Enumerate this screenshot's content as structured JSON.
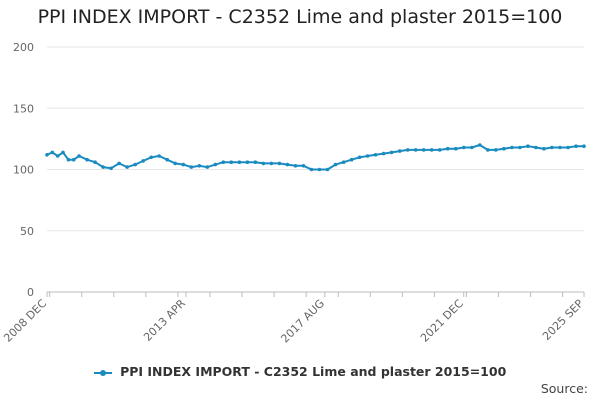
{
  "chart_data": {
    "type": "line",
    "title": "PPI INDEX IMPORT - C2352 Lime and plaster 2015=100",
    "xlabel": "",
    "ylabel": "",
    "ylim": [
      0,
      200
    ],
    "yticks": [
      0,
      50,
      100,
      150,
      200
    ],
    "xlim": [
      "2008-12",
      "2025-09"
    ],
    "x_tick_labels": [
      "2008 DEC",
      "2013 APR",
      "2017 AUG",
      "2021 DEC",
      "2025 SEP"
    ],
    "grid": true,
    "legend_position": "bottom",
    "series": [
      {
        "name": "PPI INDEX IMPORT - C2352 Lime and plaster 2015=100",
        "color": "#1a8bc0",
        "x": [
          "2008-12",
          "2009-02",
          "2009-04",
          "2009-06",
          "2009-08",
          "2009-10",
          "2009-12",
          "2010-03",
          "2010-06",
          "2010-09",
          "2010-12",
          "2011-03",
          "2011-06",
          "2011-09",
          "2011-12",
          "2012-03",
          "2012-06",
          "2012-09",
          "2012-12",
          "2013-03",
          "2013-06",
          "2013-09",
          "2013-12",
          "2014-03",
          "2014-06",
          "2014-09",
          "2014-12",
          "2015-03",
          "2015-06",
          "2015-09",
          "2015-12",
          "2016-03",
          "2016-06",
          "2016-09",
          "2016-12",
          "2017-03",
          "2017-06",
          "2017-09",
          "2017-12",
          "2018-03",
          "2018-06",
          "2018-09",
          "2018-12",
          "2019-03",
          "2019-06",
          "2019-09",
          "2019-12",
          "2020-03",
          "2020-06",
          "2020-09",
          "2020-12",
          "2021-03",
          "2021-06",
          "2021-09",
          "2021-12",
          "2022-03",
          "2022-06",
          "2022-09",
          "2022-12",
          "2023-03",
          "2023-06",
          "2023-09",
          "2023-12",
          "2024-03",
          "2024-06",
          "2024-09",
          "2024-12",
          "2025-03",
          "2025-06",
          "2025-09"
        ],
        "values": [
          112,
          114,
          111,
          114,
          108,
          108,
          111,
          108,
          106,
          102,
          101,
          105,
          102,
          104,
          107,
          110,
          111,
          108,
          105,
          104,
          102,
          103,
          102,
          104,
          106,
          106,
          106,
          106,
          106,
          105,
          105,
          105,
          104,
          103,
          103,
          100,
          100,
          100,
          104,
          106,
          108,
          110,
          111,
          112,
          113,
          114,
          115,
          116,
          116,
          116,
          116,
          116,
          117,
          117,
          118,
          118,
          120,
          116,
          116,
          117,
          118,
          118,
          119,
          118,
          117,
          118,
          118,
          118,
          119,
          119
        ]
      }
    ]
  },
  "legend": {
    "label": "PPI INDEX IMPORT - C2352 Lime and plaster 2015=100"
  },
  "source_label": "Source:"
}
